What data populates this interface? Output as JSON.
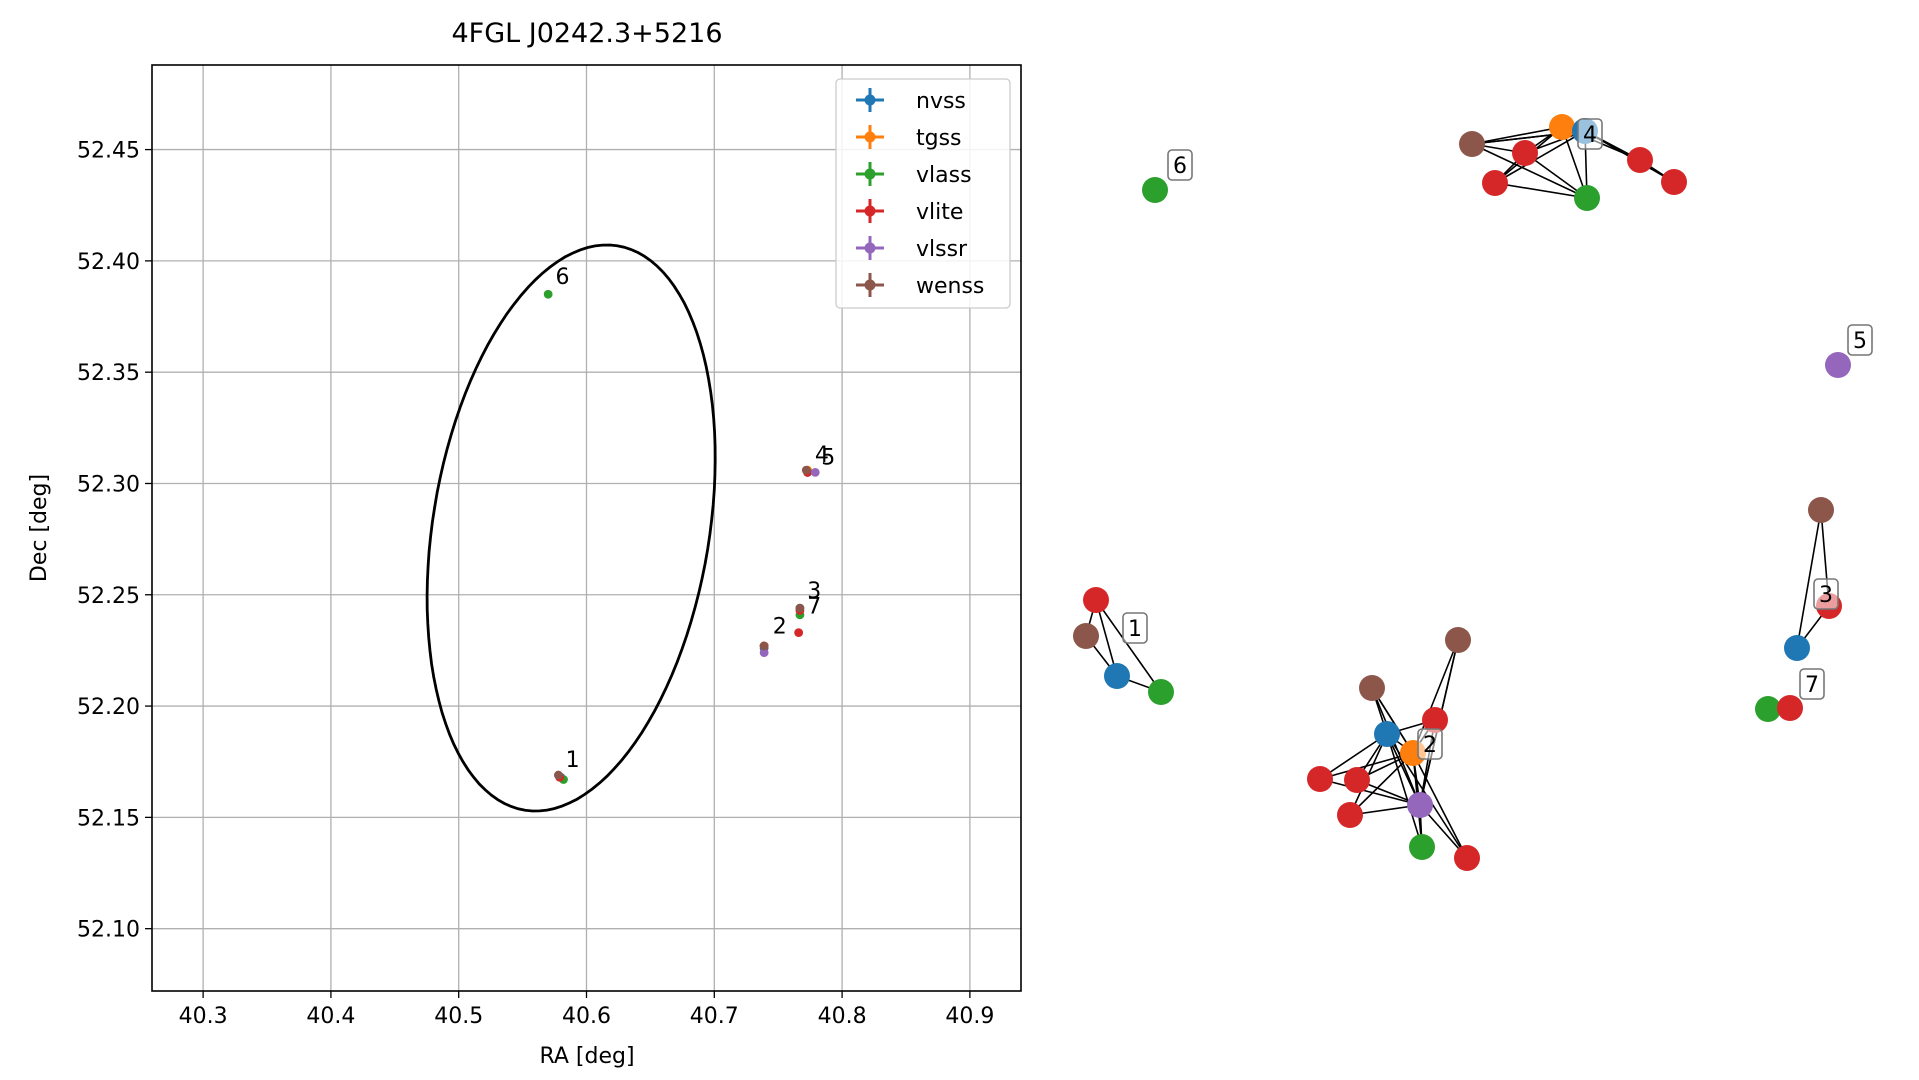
{
  "chart_data": [
    {
      "type": "scatter",
      "title": "4FGL J0242.3+5216",
      "xlabel": "RA [deg]",
      "ylabel": "Dec [deg]",
      "xlim": [
        40.26,
        40.94
      ],
      "ylim": [
        52.072,
        52.488
      ],
      "xticks": [
        "40.3",
        "40.4",
        "40.5",
        "40.6",
        "40.7",
        "40.8",
        "40.9"
      ],
      "yticks": [
        "52.10",
        "52.15",
        "52.20",
        "52.25",
        "52.30",
        "52.35",
        "52.40",
        "52.45"
      ],
      "grid": true,
      "legend_position": "top-right",
      "series": [
        {
          "name": "nvss",
          "color": "#1f77b4",
          "points": [
            [
              40.58,
              52.168
            ],
            [
              40.739,
              52.226
            ],
            [
              40.767,
              52.244
            ],
            [
              40.773,
              52.305
            ]
          ]
        },
        {
          "name": "tgss",
          "color": "#ff7f0e",
          "points": [
            [
              40.739,
              52.227
            ],
            [
              40.773,
              52.306
            ]
          ]
        },
        {
          "name": "vlass",
          "color": "#2ca02c",
          "points": [
            [
              40.582,
              52.167
            ],
            [
              40.739,
              52.227
            ],
            [
              40.767,
              52.241
            ],
            [
              40.773,
              52.305
            ],
            [
              40.57,
              52.385
            ]
          ]
        },
        {
          "name": "vlite",
          "color": "#d62728",
          "points": [
            [
              40.579,
              52.168
            ],
            [
              40.739,
              52.227
            ],
            [
              40.767,
              52.243
            ],
            [
              40.766,
              52.233
            ],
            [
              40.773,
              52.305
            ]
          ]
        },
        {
          "name": "vlssr",
          "color": "#9467bd",
          "points": [
            [
              40.739,
              52.224
            ],
            [
              40.779,
              52.305
            ]
          ]
        },
        {
          "name": "wenss",
          "color": "#8c564b",
          "points": [
            [
              40.578,
              52.169
            ],
            [
              40.739,
              52.227
            ],
            [
              40.767,
              52.244
            ],
            [
              40.772,
              52.306
            ]
          ]
        }
      ],
      "ellipse": {
        "center": [
          40.588,
          52.28
        ],
        "semi_major": 0.1356,
        "semi_minor": 0.1024,
        "angle_deg": 58
      },
      "annotations": [
        {
          "text": "1",
          "x": 40.579,
          "y": 52.169
        },
        {
          "text": "2",
          "x": 40.741,
          "y": 52.229
        },
        {
          "text": "3",
          "x": 40.768,
          "y": 52.245
        },
        {
          "text": "4",
          "x": 40.774,
          "y": 52.306
        },
        {
          "text": "5",
          "x": 40.779,
          "y": 52.305
        },
        {
          "text": "6",
          "x": 40.571,
          "y": 52.386
        },
        {
          "text": "7",
          "x": 40.768,
          "y": 52.238
        }
      ]
    },
    {
      "type": "network",
      "clusters": [
        {
          "label": "1",
          "nodes": [
            "vlite",
            "wenss",
            "nvss",
            "vlass"
          ]
        },
        {
          "label": "2",
          "nodes": [
            "nvss",
            "tgss",
            "vlass",
            "vlite",
            "vlite",
            "vlite",
            "vlite",
            "vlite",
            "vlssr",
            "wenss",
            "wenss"
          ]
        },
        {
          "label": "3",
          "nodes": [
            "vlite",
            "nvss",
            "wenss"
          ]
        },
        {
          "label": "4",
          "nodes": [
            "tgss",
            "nvss",
            "wenss",
            "vlass",
            "vlite",
            "vlite",
            "vlite",
            "vlite"
          ]
        },
        {
          "label": "5",
          "nodes": [
            "vlssr"
          ]
        },
        {
          "label": "6",
          "nodes": [
            "vlass"
          ]
        },
        {
          "label": "7",
          "nodes": [
            "vlass",
            "vlite"
          ]
        }
      ]
    }
  ]
}
